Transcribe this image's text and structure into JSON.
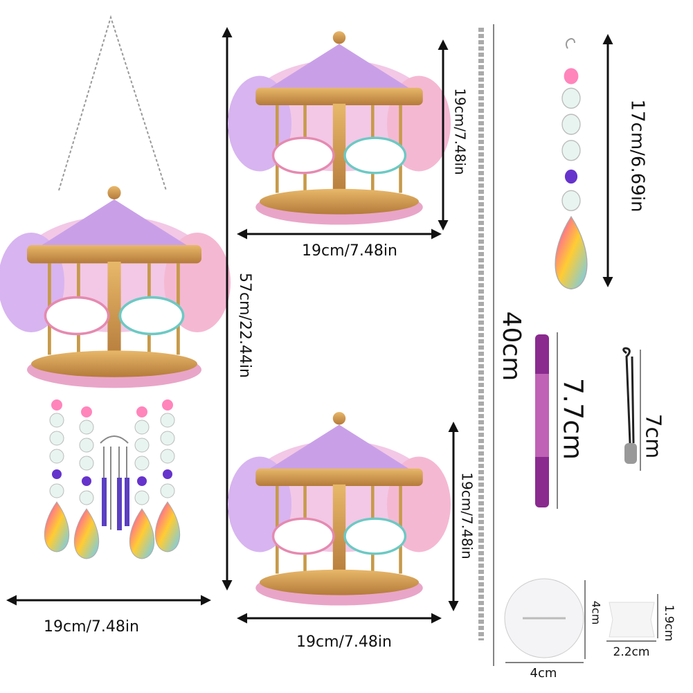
{
  "dimensions": {
    "chime_width": "19cm/7.48in",
    "chime_height": "57cm/22.44in",
    "top_panel_width": "19cm/7.48in",
    "top_panel_height": "19cm/7.48in",
    "bottom_panel_height": "19cm/7.48in",
    "bottom_panel_width": "19cm/7.48in",
    "chain_length": "40cm",
    "pendant_length": "17cm/6.69in",
    "pen_length": "7.7cm",
    "hook_length": "7cm",
    "disc_height": "4cm",
    "disc_width": "4cm",
    "clay_height": "1.9cm",
    "clay_width": "2.2cm"
  }
}
